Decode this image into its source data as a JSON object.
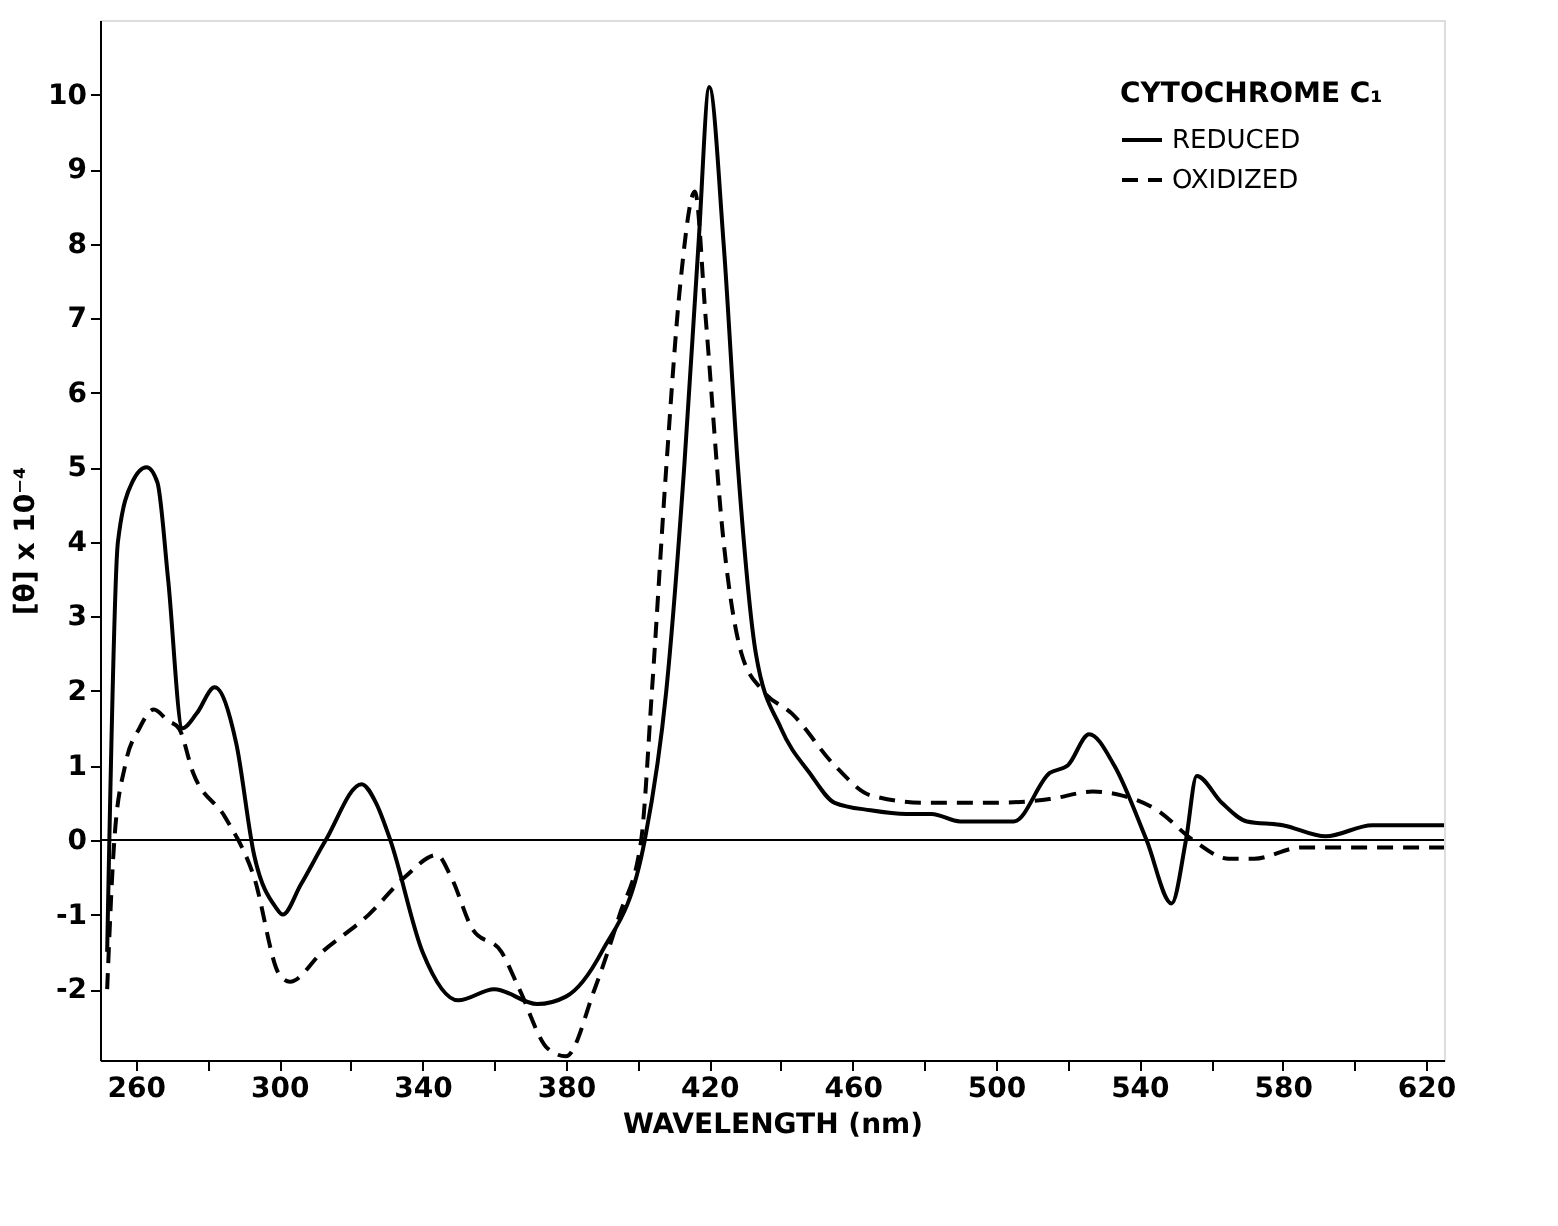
{
  "chart_data": {
    "type": "line",
    "xlabel": "WAVELENGTH (nm)",
    "ylabel": "[θ] x 10⁻⁴",
    "legend_title": "CYTOCHROME C₁",
    "legend": "top right",
    "grid": false,
    "marker": "none",
    "xlim": [
      250,
      625
    ],
    "ylim": [
      -2.95,
      11
    ],
    "xticks": [
      260,
      {
        "value": 280,
        "label": null
      },
      300,
      {
        "value": 320,
        "label": null
      },
      340,
      {
        "value": 360,
        "label": null
      },
      380,
      {
        "value": 400,
        "label": null
      },
      420,
      {
        "value": 440,
        "label": null
      },
      460,
      {
        "value": 480,
        "label": null
      },
      500,
      {
        "value": 520,
        "label": null
      },
      540,
      {
        "value": 560,
        "label": null
      },
      580,
      {
        "value": 600,
        "label": null
      },
      620
    ],
    "yticks": [
      -2,
      -1,
      0,
      1,
      2,
      3,
      4,
      5,
      6,
      7,
      8,
      9,
      10
    ],
    "ref_lines": [
      {
        "axis": "y",
        "value": 0,
        "label": null,
        "color": "#000000",
        "line_style": "solid"
      }
    ],
    "series": [
      {
        "name": "REDUCED",
        "color": "#000000",
        "line_style": "solid",
        "x": [
          252,
          255,
          259,
          263,
          266,
          269,
          273,
          277,
          282,
          288,
          293,
          299,
          301,
          306,
          313,
          323,
          327,
          331,
          340,
          350,
          360,
          372,
          380,
          390,
          402,
          408,
          413,
          417,
          420,
          424,
          428,
          433,
          440,
          448,
          455,
          465,
          475,
          482,
          490,
          505,
          515,
          520,
          526,
          533,
          542,
          549,
          553,
          556,
          563,
          570,
          580,
          592,
          605,
          625
        ],
        "values": [
          -1.5,
          4,
          4.8,
          5,
          4.8,
          3.5,
          1.5,
          1.7,
          2.05,
          1.3,
          -0.2,
          -0.9,
          -1.0,
          -0.6,
          0,
          0.75,
          0.5,
          0,
          -1.5,
          -2.15,
          -2.0,
          -2.2,
          -2.1,
          -1.5,
          0,
          2,
          5,
          8,
          10.1,
          8,
          5,
          2.5,
          1.5,
          0.9,
          0.5,
          0.4,
          0.35,
          0.35,
          0.25,
          0.25,
          0.9,
          1.0,
          1.42,
          1.0,
          0,
          -0.85,
          0,
          0.86,
          0.5,
          0.25,
          0.2,
          0.05,
          0.2,
          0.2
        ]
      },
      {
        "name": "OXIDIZED",
        "color": "#000000",
        "line_style": "dashed",
        "x": [
          252,
          254,
          257,
          261,
          265,
          269,
          272,
          276,
          285,
          293,
          300,
          303,
          312,
          325,
          335,
          344,
          348,
          354,
          362,
          367,
          375,
          380,
          388,
          395,
          401,
          404,
          408,
          412,
          416,
          419,
          424,
          429,
          435,
          443,
          455,
          465,
          480,
          500,
          515,
          527,
          535,
          545,
          555,
          565,
          572,
          585,
          600,
          625
        ],
        "values": [
          -2,
          0,
          1,
          1.5,
          1.75,
          1.6,
          1.5,
          0.9,
          0.3,
          -0.5,
          -1.8,
          -1.9,
          -1.5,
          -1.0,
          -0.5,
          -0.2,
          -0.5,
          -1.2,
          -1.5,
          -2.0,
          -2.8,
          -2.9,
          -2.0,
          -1,
          0,
          2,
          5,
          7.5,
          8.7,
          7,
          4,
          2.5,
          2,
          1.7,
          1.0,
          0.6,
          0.5,
          0.5,
          0.55,
          0.65,
          0.6,
          0.4,
          0,
          -0.25,
          -0.25,
          -0.1,
          -0.1,
          -0.1
        ]
      }
    ]
  }
}
